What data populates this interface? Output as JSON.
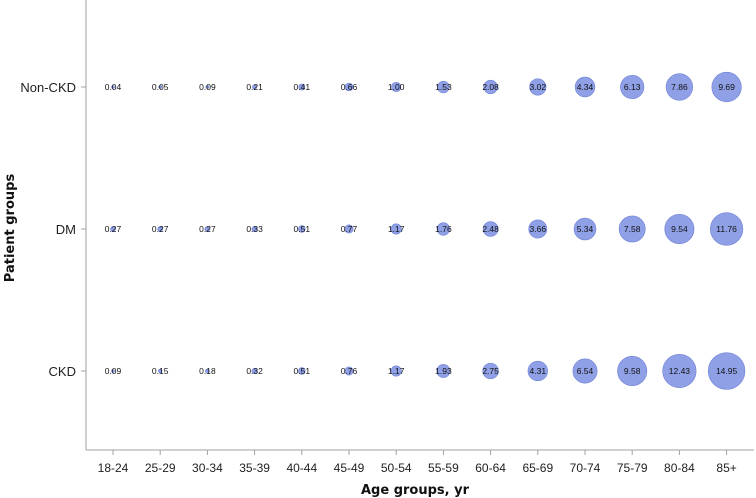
{
  "chart_data": {
    "type": "bubble",
    "title": "",
    "xlabel": "Age groups, yr",
    "ylabel": "Patient groups",
    "categories": [
      "18-24",
      "25-29",
      "30-34",
      "35-39",
      "40-44",
      "45-49",
      "50-54",
      "55-59",
      "60-64",
      "65-69",
      "70-74",
      "75-79",
      "80-84",
      "85+"
    ],
    "groups": [
      "Non-CKD",
      "DM",
      "CKD"
    ],
    "series": [
      {
        "name": "Non-CKD",
        "values": [
          0.04,
          0.05,
          0.09,
          0.21,
          0.41,
          0.66,
          1.0,
          1.53,
          2.08,
          3.02,
          4.34,
          6.13,
          7.86,
          9.69
        ]
      },
      {
        "name": "DM",
        "values": [
          0.27,
          0.27,
          0.27,
          0.33,
          0.51,
          0.77,
          1.17,
          1.76,
          2.48,
          3.66,
          5.34,
          7.58,
          9.54,
          11.76
        ]
      },
      {
        "name": "CKD",
        "values": [
          0.09,
          0.15,
          0.18,
          0.32,
          0.51,
          0.76,
          1.17,
          1.93,
          2.75,
          4.31,
          6.54,
          9.58,
          12.43,
          14.95
        ]
      }
    ],
    "data_labels": [
      [
        "0.04",
        "0.05",
        "0.09",
        "0.21",
        "0.41",
        "0.66",
        "1.00",
        "1.53",
        "2.08",
        "3.02",
        "4.34",
        "6.13",
        "7.86",
        "9.69"
      ],
      [
        "0.27",
        "0.27",
        "0.27",
        "0.33",
        "0.51",
        "0.77",
        "1.17",
        "1.76",
        "2.48",
        "3.66",
        "5.34",
        "7.58",
        "9.54",
        "11.76"
      ],
      [
        "0.09",
        "0.15",
        "0.18",
        "0.32",
        "0.51",
        "0.76",
        "1.17",
        "1.93",
        "2.75",
        "4.31",
        "6.54",
        "9.58",
        "12.43",
        "14.95"
      ]
    ],
    "bubble_color": "#8fa0e6",
    "bubble_stroke": "#6f82d6",
    "axis_color": "#a0a0a0",
    "grid": false,
    "legend": "none"
  }
}
